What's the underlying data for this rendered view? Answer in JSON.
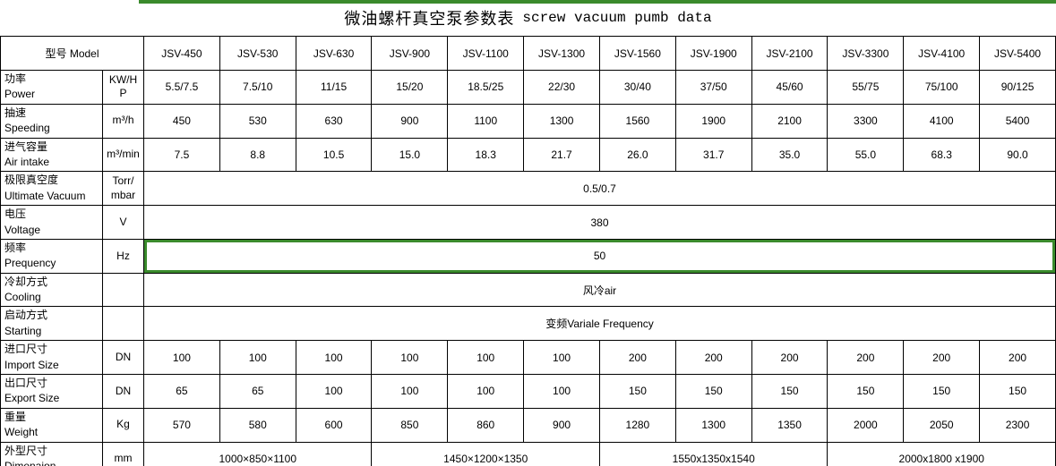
{
  "colors": {
    "selection_green": "#3a8a2c"
  },
  "title": {
    "zh": "微油螺杆真空泵参数表",
    "en": "screw vacuum pumb data"
  },
  "header": {
    "model_label": "型号 Model"
  },
  "models": [
    "JSV-450",
    "JSV-530",
    "JSV-630",
    "JSV-900",
    "JSV-1100",
    "JSV-1300",
    "JSV-1560",
    "JSV-1900",
    "JSV-2100",
    "JSV-3300",
    "JSV-4100",
    "JSV-5400"
  ],
  "rows": {
    "power": {
      "label_zh": "功率",
      "label_en": "Power",
      "unit_lines": [
        "KW/H",
        "P"
      ],
      "values": [
        "5.5/7.5",
        "7.5/10",
        "11/15",
        "15/20",
        "18.5/25",
        "22/30",
        "30/40",
        "37/50",
        "45/60",
        "55/75",
        "75/100",
        "90/125"
      ]
    },
    "speeding": {
      "label_zh": "抽速",
      "label_en": "Speeding",
      "unit_lines": [
        "m³/h"
      ],
      "values": [
        "450",
        "530",
        "630",
        "900",
        "1100",
        "1300",
        "1560",
        "1900",
        "2100",
        "3300",
        "4100",
        "5400"
      ]
    },
    "air_intake": {
      "label_zh": "进气容量",
      "label_en": "Air intake",
      "unit_lines": [
        "m³/min"
      ],
      "values": [
        "7.5",
        "8.8",
        "10.5",
        "15.0",
        "18.3",
        "21.7",
        "26.0",
        "31.7",
        "35.0",
        "55.0",
        "68.3",
        "90.0"
      ]
    },
    "ultimate_vacuum": {
      "label_zh": "极限真空度",
      "label_en": "Ultimate Vacuum",
      "unit_lines": [
        "Torr/",
        "mbar"
      ],
      "merged_value": "0.5/0.7"
    },
    "voltage": {
      "label_zh": "电压",
      "label_en": "Voltage",
      "unit_lines": [
        "V"
      ],
      "merged_value": "380"
    },
    "frequency": {
      "label_zh": "频率",
      "label_en": "Prequency",
      "unit_lines": [
        "Hz"
      ],
      "merged_value": "50",
      "selected": true
    },
    "cooling": {
      "label_zh": "冷却方式",
      "label_en": "Cooling",
      "unit_lines": [
        ""
      ],
      "merged_value": "风冷air"
    },
    "starting": {
      "label_zh": "启动方式",
      "label_en": "Starting",
      "unit_lines": [
        ""
      ],
      "merged_value": "变频Variale Frequency"
    },
    "import_size": {
      "label_zh": "进口尺寸",
      "label_en": "Import Size",
      "unit_lines": [
        "DN"
      ],
      "values": [
        "100",
        "100",
        "100",
        "100",
        "100",
        "100",
        "200",
        "200",
        "200",
        "200",
        "200",
        "200"
      ]
    },
    "export_size": {
      "label_zh": "出口尺寸",
      "label_en": "Export Size",
      "unit_lines": [
        "DN"
      ],
      "values": [
        "65",
        "65",
        "100",
        "100",
        "100",
        "100",
        "150",
        "150",
        "150",
        "150",
        "150",
        "150"
      ]
    },
    "weight": {
      "label_zh": "重量",
      "label_en": "Weight",
      "unit_lines": [
        "Kg"
      ],
      "values": [
        "570",
        "580",
        "600",
        "850",
        "860",
        "900",
        "1280",
        "1300",
        "1350",
        "2000",
        "2050",
        "2300"
      ]
    },
    "dimension": {
      "label_zh": "外型尺寸",
      "label_en": "Dimenaion",
      "unit_lines": [
        "mm"
      ],
      "group_values": [
        "1000×850×1100",
        "1450×1200×1350",
        "1550x1350x1540",
        "2000x1800 x1900"
      ]
    }
  }
}
